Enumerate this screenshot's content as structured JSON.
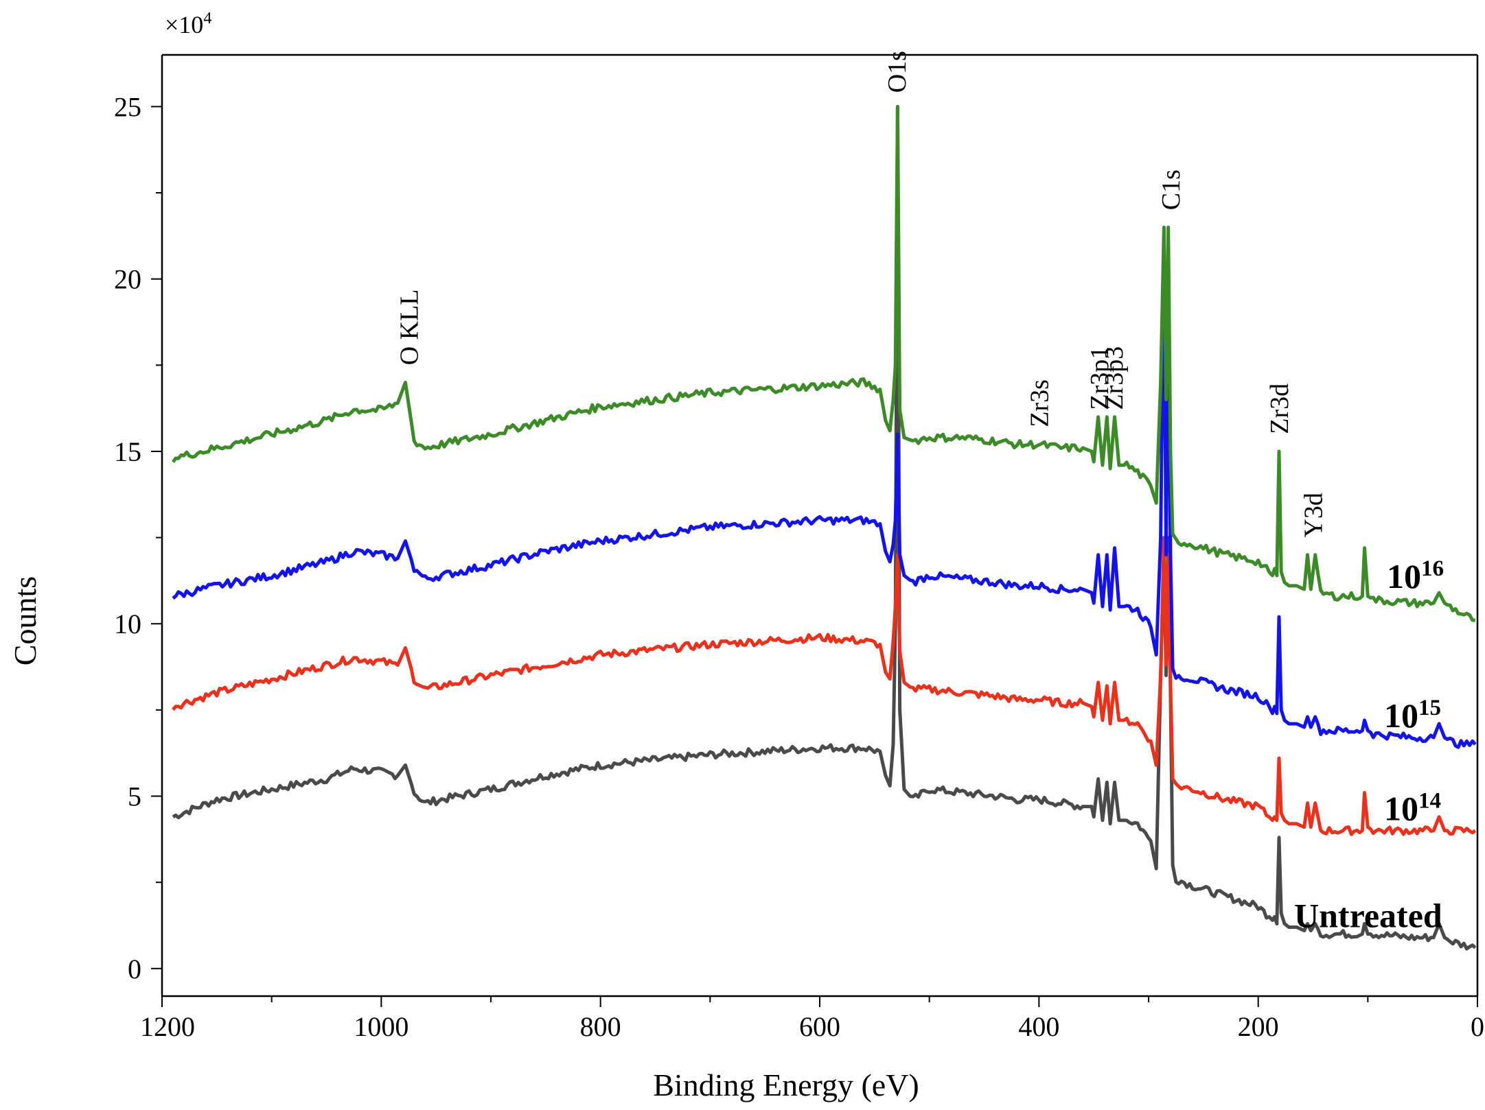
{
  "chart_data": {
    "type": "line",
    "title": "",
    "xlabel": "Binding Energy (eV)",
    "ylabel": "Counts",
    "y_multiplier": {
      "base": "×10",
      "exponent": "4"
    },
    "xlim": [
      1200,
      0
    ],
    "ylim": [
      -0.8,
      26.5
    ],
    "x_ticks": [
      1200,
      1000,
      800,
      600,
      400,
      200,
      0
    ],
    "y_ticks": [
      0,
      5,
      10,
      15,
      20,
      25
    ],
    "grid": false,
    "base_x": [
      1190,
      1150,
      1100,
      1050,
      1025,
      1000,
      985,
      978,
      970,
      960,
      900,
      850,
      800,
      700,
      600,
      560,
      545,
      540,
      536,
      533,
      531,
      529,
      527,
      523,
      515,
      500,
      470,
      440,
      420,
      400,
      380,
      360,
      352,
      350,
      346,
      342,
      338,
      335,
      331,
      327,
      320,
      310,
      298,
      293,
      289,
      286,
      284,
      282,
      280,
      278,
      275,
      260,
      230,
      200,
      190,
      187,
      185,
      183,
      181,
      179,
      176,
      172,
      165,
      158,
      155,
      152,
      148,
      143,
      130,
      105,
      103,
      100,
      95,
      60,
      40,
      35,
      30,
      25,
      15,
      2
    ],
    "series": [
      {
        "name": "Untreated",
        "label_base": "Untreated",
        "label_exp": "",
        "color": "#4a4a4a",
        "y": [
          4.4,
          4.9,
          5.2,
          5.5,
          5.8,
          5.7,
          5.6,
          5.9,
          5.1,
          4.8,
          5.2,
          5.6,
          5.9,
          6.2,
          6.4,
          6.4,
          6.3,
          5.6,
          5.3,
          6.5,
          10.0,
          25.0,
          7.5,
          5.2,
          4.9,
          5.2,
          5.1,
          5.0,
          4.9,
          4.9,
          4.8,
          4.7,
          4.7,
          4.4,
          5.5,
          4.3,
          5.4,
          4.2,
          5.4,
          4.3,
          4.3,
          4.2,
          3.7,
          2.9,
          8.5,
          12.0,
          8.5,
          12.5,
          8.0,
          3.0,
          2.6,
          2.4,
          2.1,
          1.8,
          1.5,
          1.4,
          1.5,
          1.3,
          3.8,
          1.6,
          1.3,
          1.2,
          1.2,
          1.1,
          1.3,
          1.1,
          1.3,
          1.0,
          1.0,
          1.0,
          1.3,
          1.0,
          1.0,
          0.9,
          0.9,
          1.3,
          0.9,
          0.8,
          0.7,
          0.6
        ]
      },
      {
        "name": "10^14",
        "label_base": "10",
        "label_exp": "14",
        "color": "#e8321e",
        "y": [
          7.6,
          8.0,
          8.4,
          8.8,
          9.0,
          8.9,
          8.8,
          9.3,
          8.4,
          8.1,
          8.5,
          8.8,
          9.1,
          9.4,
          9.6,
          9.5,
          9.4,
          8.6,
          8.4,
          9.5,
          10.5,
          12.0,
          9.2,
          8.3,
          8.1,
          8.1,
          8.0,
          7.9,
          7.8,
          7.8,
          7.7,
          7.7,
          7.6,
          7.3,
          8.3,
          7.2,
          8.2,
          7.1,
          8.3,
          7.2,
          7.2,
          7.1,
          6.6,
          5.9,
          8.5,
          12.5,
          8.8,
          12.0,
          8.3,
          5.5,
          5.3,
          5.2,
          4.9,
          4.7,
          4.4,
          4.3,
          4.4,
          4.3,
          6.1,
          4.5,
          4.3,
          4.2,
          4.2,
          4.1,
          4.8,
          4.1,
          4.8,
          4.0,
          4.0,
          4.0,
          5.1,
          4.1,
          4.0,
          4.0,
          4.0,
          4.4,
          4.0,
          4.0,
          4.0,
          4.0
        ]
      },
      {
        "name": "10^15",
        "label_base": "10",
        "label_exp": "15",
        "color": "#1414e6",
        "y": [
          10.8,
          11.1,
          11.4,
          11.8,
          12.1,
          12.0,
          11.9,
          12.4,
          11.6,
          11.3,
          11.7,
          12.1,
          12.4,
          12.8,
          13.0,
          13.0,
          12.9,
          12.1,
          11.8,
          12.3,
          13.0,
          15.5,
          12.0,
          11.4,
          11.2,
          11.4,
          11.3,
          11.2,
          11.1,
          11.1,
          11.0,
          11.0,
          10.9,
          10.6,
          12.0,
          10.5,
          12.0,
          10.4,
          12.2,
          10.5,
          10.5,
          10.4,
          9.9,
          9.1,
          12.5,
          21.0,
          12.0,
          20.5,
          12.0,
          8.7,
          8.5,
          8.4,
          8.1,
          7.9,
          7.6,
          7.4,
          7.6,
          7.4,
          10.2,
          7.5,
          7.2,
          7.1,
          7.1,
          7.0,
          7.3,
          7.0,
          7.3,
          6.9,
          6.9,
          6.9,
          7.2,
          6.9,
          6.8,
          6.7,
          6.7,
          7.1,
          6.7,
          6.6,
          6.5,
          6.5
        ]
      },
      {
        "name": "10^16",
        "label_base": "10",
        "label_exp": "16",
        "color": "#3c8a28",
        "y": [
          14.8,
          15.1,
          15.5,
          15.9,
          16.2,
          16.2,
          16.4,
          17.0,
          15.3,
          15.1,
          15.5,
          15.9,
          16.3,
          16.7,
          16.9,
          17.0,
          16.8,
          15.9,
          15.6,
          16.5,
          17.5,
          25.0,
          16.2,
          15.4,
          15.3,
          15.4,
          15.4,
          15.3,
          15.2,
          15.2,
          15.1,
          15.1,
          15.0,
          14.7,
          16.0,
          14.6,
          16.0,
          14.5,
          16.0,
          14.6,
          14.6,
          14.4,
          14.0,
          13.5,
          17.0,
          21.5,
          16.5,
          21.5,
          15.0,
          12.6,
          12.4,
          12.3,
          12.0,
          11.8,
          11.5,
          11.4,
          11.6,
          11.4,
          15.0,
          11.5,
          11.2,
          11.1,
          11.1,
          11.0,
          12.0,
          11.0,
          12.0,
          10.9,
          10.8,
          10.8,
          12.2,
          10.8,
          10.7,
          10.6,
          10.6,
          10.9,
          10.6,
          10.5,
          10.3,
          10.1
        ]
      }
    ],
    "peak_labels": [
      {
        "text": "O KLL",
        "x": 975,
        "y": 17.5
      },
      {
        "text": "O1s",
        "x": 530,
        "y": 25.4
      },
      {
        "text": "Zr3s",
        "x": 400,
        "y": 15.7
      },
      {
        "text": "Zr3p1",
        "x": 345,
        "y": 16.2
      },
      {
        "text": "Zr3p3",
        "x": 332,
        "y": 16.2
      },
      {
        "text": "C1s",
        "x": 280,
        "y": 22.0
      },
      {
        "text": "Zr3d",
        "x": 181,
        "y": 15.5
      },
      {
        "text": "Y3d",
        "x": 150,
        "y": 12.5
      }
    ]
  }
}
